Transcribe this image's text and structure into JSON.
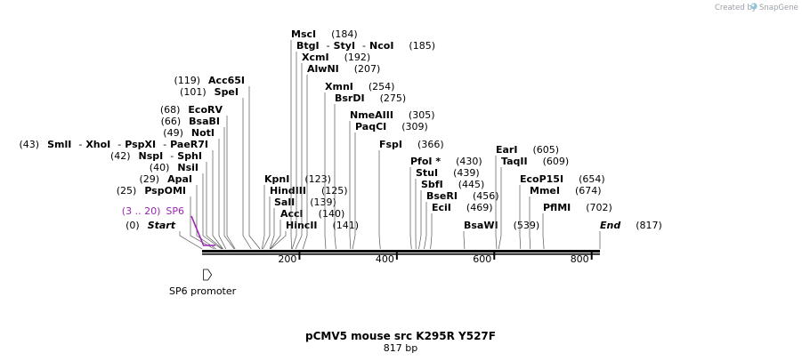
{
  "credit": {
    "text": "Created by",
    "brand": "SnapGene"
  },
  "title": "pCMV5 mouse src K295R Y527F",
  "length_label": "817 bp",
  "seq_length": 817,
  "axis_ticks": [
    "200",
    "400",
    "600",
    "800"
  ],
  "features": [
    {
      "name": "SP6",
      "range": "(3 .. 20)",
      "start": 3,
      "end": 20,
      "color": "#9b26b6"
    }
  ],
  "promoter": {
    "label": "SP6 promoter",
    "start": 3,
    "end": 20
  },
  "sites": [
    {
      "pos": "(0)",
      "name": "Start",
      "bp": 0,
      "side": "left",
      "italic": true
    },
    {
      "pos": "(25)",
      "name": "PspOMI",
      "bp": 25,
      "side": "left"
    },
    {
      "pos": "(29)",
      "name": "ApaI",
      "bp": 29,
      "side": "left"
    },
    {
      "pos": "(40)",
      "name": "NsiI",
      "bp": 40,
      "side": "left"
    },
    {
      "pos": "(42)",
      "names": [
        "NspI",
        "SphI"
      ],
      "bp": 42,
      "side": "left"
    },
    {
      "pos": "(43)",
      "names": [
        "SmlI",
        "XhoI",
        "PspXI",
        "PaeR7I"
      ],
      "bp": 43,
      "side": "left"
    },
    {
      "pos": "(49)",
      "name": "NotI",
      "bp": 49,
      "side": "left"
    },
    {
      "pos": "(66)",
      "name": "BsaBI",
      "bp": 66,
      "side": "left"
    },
    {
      "pos": "(68)",
      "name": "EcoRV",
      "bp": 68,
      "side": "left"
    },
    {
      "pos": "(101)",
      "name": "SpeI",
      "bp": 101,
      "side": "left"
    },
    {
      "pos": "(119)",
      "name": "Acc65I",
      "bp": 119,
      "side": "left"
    },
    {
      "pos": "(123)",
      "name": "KpnI",
      "bp": 123,
      "side": "right"
    },
    {
      "pos": "(125)",
      "name": "HindIII",
      "bp": 125,
      "side": "right"
    },
    {
      "pos": "(139)",
      "name": "SalI",
      "bp": 139,
      "side": "right"
    },
    {
      "pos": "(140)",
      "name": "AccI",
      "bp": 140,
      "side": "right"
    },
    {
      "pos": "(141)",
      "name": "HincII",
      "bp": 141,
      "side": "right"
    },
    {
      "pos": "(184)",
      "name": "MscI",
      "bp": 184,
      "side": "right"
    },
    {
      "pos": "(185)",
      "names": [
        "BtgI",
        "StyI",
        "NcoI"
      ],
      "bp": 185,
      "side": "right"
    },
    {
      "pos": "(192)",
      "name": "XcmI",
      "bp": 192,
      "side": "right"
    },
    {
      "pos": "(207)",
      "name": "AlwNI",
      "bp": 207,
      "side": "right"
    },
    {
      "pos": "(254)",
      "name": "XmnI",
      "bp": 254,
      "side": "right"
    },
    {
      "pos": "(275)",
      "name": "BsrDI",
      "bp": 275,
      "side": "right"
    },
    {
      "pos": "(305)",
      "name": "NmeAIII",
      "bp": 305,
      "side": "right"
    },
    {
      "pos": "(309)",
      "name": "PaqCI",
      "bp": 309,
      "side": "right"
    },
    {
      "pos": "(366)",
      "name": "FspI",
      "bp": 366,
      "side": "right"
    },
    {
      "pos": "(430)",
      "name": "PfoI *",
      "bp": 430,
      "side": "right"
    },
    {
      "pos": "(439)",
      "name": "StuI",
      "bp": 439,
      "side": "right"
    },
    {
      "pos": "(445)",
      "name": "SbfI",
      "bp": 445,
      "side": "right"
    },
    {
      "pos": "(456)",
      "name": "BseRI",
      "bp": 456,
      "side": "right"
    },
    {
      "pos": "(469)",
      "name": "EciI",
      "bp": 469,
      "side": "right"
    },
    {
      "pos": "(539)",
      "name": "BsaWI",
      "bp": 539,
      "side": "right"
    },
    {
      "pos": "(605)",
      "name": "EarI",
      "bp": 605,
      "side": "right"
    },
    {
      "pos": "(609)",
      "name": "TaqII",
      "bp": 609,
      "side": "right"
    },
    {
      "pos": "(654)",
      "name": "EcoP15I",
      "bp": 654,
      "side": "right"
    },
    {
      "pos": "(674)",
      "name": "MmeI",
      "bp": 674,
      "side": "right"
    },
    {
      "pos": "(702)",
      "name": "PflMI",
      "bp": 702,
      "side": "right"
    },
    {
      "pos": "(817)",
      "name": "End",
      "bp": 817,
      "side": "right",
      "italic": true
    }
  ]
}
